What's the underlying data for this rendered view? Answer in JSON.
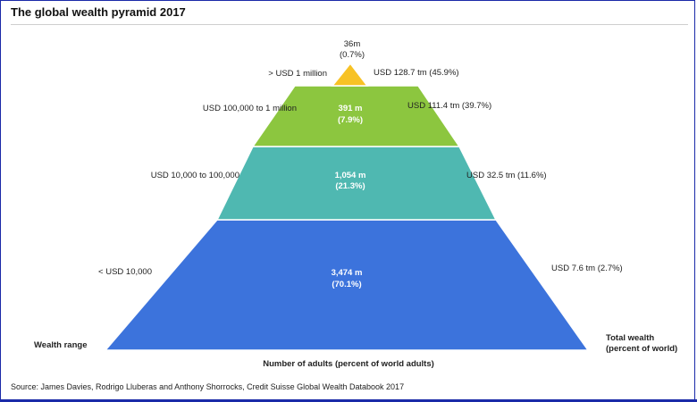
{
  "title": "The global wealth pyramid 2017",
  "source": "Source: James Davies, Rodrigo Lluberas and Anthony Shorrocks, Credit Suisse Global Wealth Databook 2017",
  "colors": {
    "tier1": "#3c73dc",
    "tier2": "#4fb8b1",
    "tier3": "#8cc63f",
    "tier4": "#f7c225",
    "frame": "#1a2aa8"
  },
  "chart_data": {
    "type": "pyramid",
    "title": "The global wealth pyramid 2017",
    "left_axis_label": "Wealth range",
    "bottom_axis_label": "Number of adults (percent of world adults)",
    "right_axis_label_line1": "Total wealth",
    "right_axis_label_line2": "(percent of world)",
    "tiers": [
      {
        "wealth_range": "< USD 10,000",
        "adults_line1": "3,474 m",
        "adults_line2": "(70.1%)",
        "total_wealth": "USD 7.6 tm (2.7%)",
        "adults_m": 3474,
        "adults_pct": 70.1,
        "wealth_tm": 7.6,
        "wealth_pct": 2.7
      },
      {
        "wealth_range": "USD 10,000  to 100,000",
        "adults_line1": "1,054 m",
        "adults_line2": "(21.3%)",
        "total_wealth": "USD 32.5 tm (11.6%)",
        "adults_m": 1054,
        "adults_pct": 21.3,
        "wealth_tm": 32.5,
        "wealth_pct": 11.6
      },
      {
        "wealth_range": "USD 100,000  to 1 million",
        "adults_line1": "391 m",
        "adults_line2": "(7.9%)",
        "total_wealth": "USD 111.4 tm (39.7%)",
        "adults_m": 391,
        "adults_pct": 7.9,
        "wealth_tm": 111.4,
        "wealth_pct": 39.7
      },
      {
        "wealth_range": ">  USD 1 million",
        "adults_line1": "36m",
        "adults_line2": "(0.7%)",
        "total_wealth": "USD 128.7 tm (45.9%)",
        "adults_m": 36,
        "adults_pct": 0.7,
        "wealth_tm": 128.7,
        "wealth_pct": 45.9
      }
    ]
  }
}
